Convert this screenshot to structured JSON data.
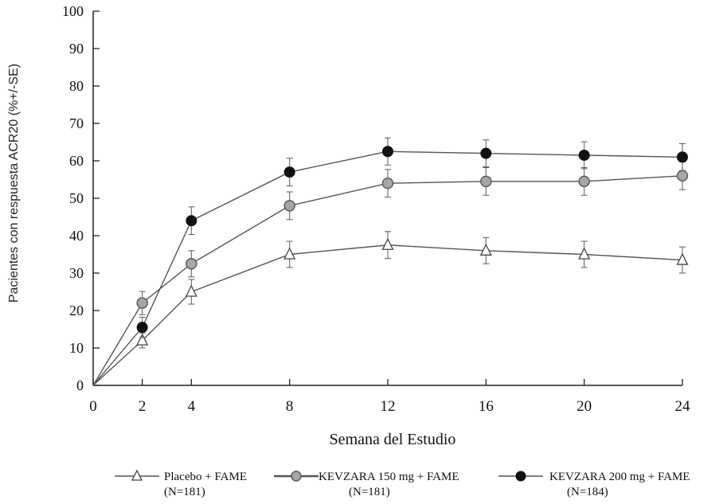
{
  "chart_data": {
    "type": "line",
    "title": "",
    "xlabel": "Semana del Estudio",
    "ylabel": "Pacientes con respuesta ACR20 (%+/-SE)",
    "x": [
      0,
      2,
      4,
      8,
      12,
      16,
      20,
      24
    ],
    "x_ticks": [
      "0",
      "2",
      "4",
      "8",
      "12",
      "16",
      "20",
      "24"
    ],
    "y_ticks": [
      "0",
      "10",
      "20",
      "30",
      "40",
      "50",
      "60",
      "70",
      "80",
      "90",
      "100"
    ],
    "ylim": [
      0,
      100
    ],
    "grid": false,
    "legend_position": "bottom",
    "series": [
      {
        "name": "Placebo + FAME",
        "n_label": "(N=181)",
        "marker": "open-triangle",
        "color": "#555555",
        "values": [
          0,
          12,
          25,
          35,
          37.5,
          36,
          35,
          33.5
        ],
        "se": [
          0,
          2,
          3.3,
          3.5,
          3.6,
          3.5,
          3.5,
          3.5
        ]
      },
      {
        "name": "KEVZARA  150 mg + FAME",
        "n_label": "(N=181)",
        "marker": "gray-circle",
        "color": "#a6a6a6",
        "values": [
          0,
          22,
          32.5,
          48,
          54,
          54.5,
          54.5,
          56
        ],
        "se": [
          0,
          3.1,
          3.5,
          3.7,
          3.7,
          3.7,
          3.7,
          3.7
        ]
      },
      {
        "name": "KEVZARA  200 mg + FAME",
        "n_label": "(N=184)",
        "marker": "black-circle",
        "color": "#111111",
        "values": [
          0,
          15.5,
          44,
          57,
          62.5,
          62,
          61.5,
          61
        ],
        "se": [
          0,
          2.7,
          3.7,
          3.7,
          3.6,
          3.6,
          3.6,
          3.6
        ]
      }
    ]
  }
}
